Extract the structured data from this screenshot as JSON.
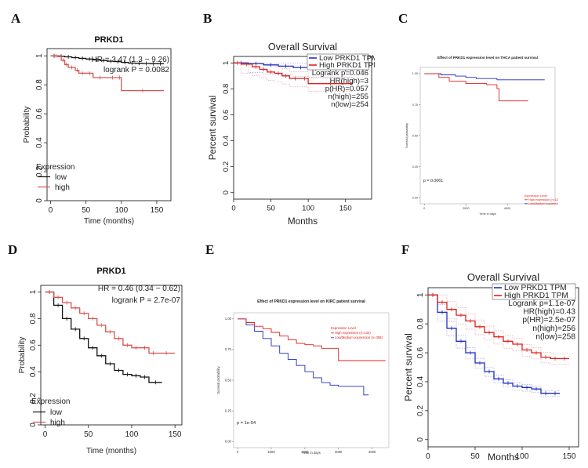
{
  "figure": {
    "letters": [
      "A",
      "B",
      "C",
      "D",
      "E",
      "F"
    ]
  },
  "colors": {
    "black": "#111111",
    "red_km": "#d9534f",
    "blue": "#1f2fbf",
    "red": "#e0211d",
    "grey": "#9a9a9a",
    "pink": "#e7a2a2",
    "light_blue": "#9aa3e8"
  },
  "chart_data": [
    {
      "id": "A",
      "type": "line",
      "style": "kmplot",
      "title": "PRKD1",
      "xlabel": "Time (months)",
      "ylabel": "Probability",
      "xlim": [
        -5,
        170
      ],
      "ylim": [
        0,
        1.05
      ],
      "xticks": [
        0,
        50,
        100,
        150
      ],
      "yticks": [
        0.0,
        0.2,
        0.4,
        0.6,
        0.8,
        1.0
      ],
      "annotations": [
        "HR = 3.47 (1.3 − 9.26)",
        "logrank P = 0.0082"
      ],
      "legend_title": "Expression",
      "series": [
        {
          "name": "low",
          "color": "#111111",
          "x": [
            0,
            10,
            20,
            30,
            40,
            50,
            60,
            70,
            80,
            90,
            100,
            110,
            120,
            130,
            140,
            150,
            160
          ],
          "y": [
            1.0,
            0.997,
            0.993,
            0.988,
            0.983,
            0.978,
            0.972,
            0.968,
            0.963,
            0.96,
            0.955,
            0.95,
            0.948,
            0.947,
            0.946,
            0.946,
            0.946
          ]
        },
        {
          "name": "high",
          "color": "#d9534f",
          "x": [
            0,
            15,
            20,
            25,
            35,
            40,
            50,
            60,
            80,
            95,
            100,
            160
          ],
          "y": [
            1.0,
            0.97,
            0.94,
            0.92,
            0.9,
            0.88,
            0.88,
            0.85,
            0.85,
            0.85,
            0.76,
            0.76
          ]
        }
      ]
    },
    {
      "id": "B",
      "type": "line",
      "style": "gepia",
      "title": "Overall Survival",
      "xlabel": "Months",
      "ylabel": "Percent survival",
      "xlim": [
        0,
        185
      ],
      "ylim": [
        -0.05,
        1.05
      ],
      "xticks": [
        0,
        50,
        100,
        150
      ],
      "yticks": [
        0.0,
        0.2,
        0.4,
        0.6,
        0.8,
        1.0
      ],
      "legend": [
        "Low PRKD1 TPM",
        "High PRKD1 TPM"
      ],
      "stats": [
        "Logrank p=0.046",
        "HR(high)=3",
        "p(HR)=0.057",
        "n(high)=255",
        "n(low)=254"
      ],
      "series": [
        {
          "name": "Low PRKD1 TPM",
          "color": "#1f2fbf",
          "x": [
            0,
            20,
            40,
            60,
            80,
            100,
            120,
            140,
            160
          ],
          "y": [
            1.0,
            0.995,
            0.985,
            0.975,
            0.965,
            0.955,
            0.95,
            0.95,
            0.95
          ]
        },
        {
          "name": "High PRKD1 TPM",
          "color": "#e0211d",
          "x": [
            0,
            10,
            25,
            35,
            45,
            55,
            65,
            75,
            90,
            100,
            160
          ],
          "y": [
            1.0,
            0.99,
            0.97,
            0.95,
            0.93,
            0.92,
            0.9,
            0.88,
            0.88,
            0.84,
            0.84
          ]
        }
      ]
    },
    {
      "id": "C",
      "type": "line",
      "style": "timer",
      "title": "Effect of PRKD1 expression level on THCA patient survival",
      "xlabel": "Time in days",
      "ylabel": "Survival probability",
      "xlim": [
        -200,
        6300
      ],
      "ylim": [
        -0.05,
        1.05
      ],
      "xtick_values": [
        0,
        2000,
        4000
      ],
      "xtick_labels": [
        "0",
        "2000",
        "4000"
      ],
      "ytick_values": [
        0.0,
        0.25,
        0.5,
        0.75,
        1.0
      ],
      "ytick_labels": [
        "0.00",
        "0.25",
        "0.50",
        "0.75",
        "1.00"
      ],
      "pvalue": "p = 0.0061",
      "legend_title": "Expression Level",
      "legend": [
        "High expression (n=127)",
        "Low/Medium expression (n=377)"
      ],
      "series": [
        {
          "name": "Low/Medium expression",
          "color": "#1f2fbf",
          "x": [
            0,
            800,
            1500,
            2000,
            2500,
            3500,
            4500,
            5800
          ],
          "y": [
            1.0,
            0.99,
            0.98,
            0.97,
            0.96,
            0.95,
            0.95,
            0.95
          ]
        },
        {
          "name": "High expression",
          "color": "#e0211d",
          "x": [
            0,
            700,
            1200,
            2000,
            3000,
            3500,
            3600,
            5000
          ],
          "y": [
            1.0,
            0.97,
            0.94,
            0.92,
            0.91,
            0.88,
            0.78,
            0.78
          ]
        }
      ]
    },
    {
      "id": "D",
      "type": "line",
      "style": "kmplot",
      "title": "PRKD1",
      "xlabel": "Time (months)",
      "ylabel": "Probability",
      "xlim": [
        -5,
        158
      ],
      "ylim": [
        0,
        1.05
      ],
      "xticks": [
        0,
        50,
        100,
        150
      ],
      "yticks": [
        0.0,
        0.2,
        0.4,
        0.6,
        0.8,
        1.0
      ],
      "annotations": [
        "HR = 0.46 (0.34 − 0.62)",
        "logrank P = 2.7e-07"
      ],
      "legend_title": "Expression",
      "series": [
        {
          "name": "low",
          "color": "#111111",
          "x": [
            0,
            10,
            20,
            30,
            40,
            50,
            60,
            70,
            80,
            90,
            100,
            110,
            120,
            135
          ],
          "y": [
            1.0,
            0.9,
            0.8,
            0.72,
            0.65,
            0.58,
            0.52,
            0.46,
            0.41,
            0.38,
            0.37,
            0.36,
            0.32,
            0.32
          ]
        },
        {
          "name": "high",
          "color": "#d9534f",
          "x": [
            0,
            10,
            20,
            30,
            40,
            50,
            60,
            70,
            80,
            90,
            100,
            110,
            120,
            130,
            150
          ],
          "y": [
            1.0,
            0.96,
            0.92,
            0.88,
            0.84,
            0.8,
            0.75,
            0.7,
            0.65,
            0.6,
            0.58,
            0.58,
            0.54,
            0.54,
            0.54
          ]
        }
      ]
    },
    {
      "id": "E",
      "type": "line",
      "style": "timer",
      "title": "Effect of PRKD1 expression level on KIRC patient survival",
      "xlabel": "Time in days",
      "ylabel": "Survival probability",
      "xlim": [
        -120,
        4500
      ],
      "ylim": [
        -0.05,
        1.05
      ],
      "xtick_values": [
        0,
        1000,
        2000,
        3000,
        4000
      ],
      "xtick_labels": [
        "0",
        "1000",
        "2000",
        "3000",
        "4000"
      ],
      "ytick_values": [
        0.0,
        0.25,
        0.5,
        0.75,
        1.0
      ],
      "ytick_labels": [
        "0.00",
        "0.25",
        "0.50",
        "0.75",
        "1.00"
      ],
      "pvalue": "p = 1e-04",
      "legend_title": "Expression Level",
      "legend": [
        "High expression (n=133)",
        "Low/Medium expression (n=398)"
      ],
      "series": [
        {
          "name": "Low/Medium expression",
          "color": "#1f2fbf",
          "x": [
            0,
            250,
            500,
            750,
            1000,
            1250,
            1500,
            1750,
            2000,
            2250,
            2500,
            2750,
            3000,
            3250,
            3500,
            3750,
            3900
          ],
          "y": [
            1.0,
            0.95,
            0.9,
            0.84,
            0.78,
            0.72,
            0.67,
            0.62,
            0.57,
            0.52,
            0.48,
            0.46,
            0.45,
            0.45,
            0.45,
            0.38,
            0.38
          ]
        },
        {
          "name": "High expression",
          "color": "#e0211d",
          "x": [
            0,
            250,
            500,
            750,
            1000,
            1250,
            1500,
            1750,
            2000,
            2250,
            2500,
            2750,
            3000,
            4400
          ],
          "y": [
            1.0,
            0.97,
            0.94,
            0.92,
            0.89,
            0.86,
            0.83,
            0.8,
            0.79,
            0.78,
            0.76,
            0.76,
            0.66,
            0.66
          ]
        }
      ]
    },
    {
      "id": "F",
      "type": "line",
      "style": "gepia",
      "title": "Overall Survival",
      "xlabel": "Months",
      "ylabel": "Percent survival",
      "xlim": [
        0,
        160
      ],
      "ylim": [
        -0.05,
        1.05
      ],
      "xticks": [
        0,
        50,
        100,
        150
      ],
      "yticks": [
        0.0,
        0.2,
        0.4,
        0.6,
        0.8,
        1.0
      ],
      "legend": [
        "Low PRKD1 TPM",
        "High PRKD1 TPM"
      ],
      "stats": [
        "Logrank p=1.1e-07",
        "HR(high)=0.43",
        "p(HR)=2.5e-07",
        "n(high)=256",
        "n(low)=258"
      ],
      "series": [
        {
          "name": "Low PRKD1 TPM",
          "color": "#1f2fbf",
          "x": [
            0,
            10,
            20,
            30,
            40,
            50,
            60,
            70,
            80,
            90,
            100,
            110,
            120,
            130,
            140
          ],
          "y": [
            1.0,
            0.88,
            0.77,
            0.68,
            0.6,
            0.53,
            0.47,
            0.42,
            0.39,
            0.37,
            0.36,
            0.35,
            0.32,
            0.32,
            0.32
          ]
        },
        {
          "name": "High PRKD1 TPM",
          "color": "#e0211d",
          "x": [
            0,
            10,
            20,
            30,
            40,
            50,
            60,
            70,
            80,
            90,
            100,
            110,
            120,
            130,
            140,
            150
          ],
          "y": [
            1.0,
            0.95,
            0.9,
            0.86,
            0.82,
            0.78,
            0.74,
            0.71,
            0.68,
            0.66,
            0.62,
            0.6,
            0.57,
            0.56,
            0.56,
            0.56
          ]
        }
      ]
    }
  ]
}
